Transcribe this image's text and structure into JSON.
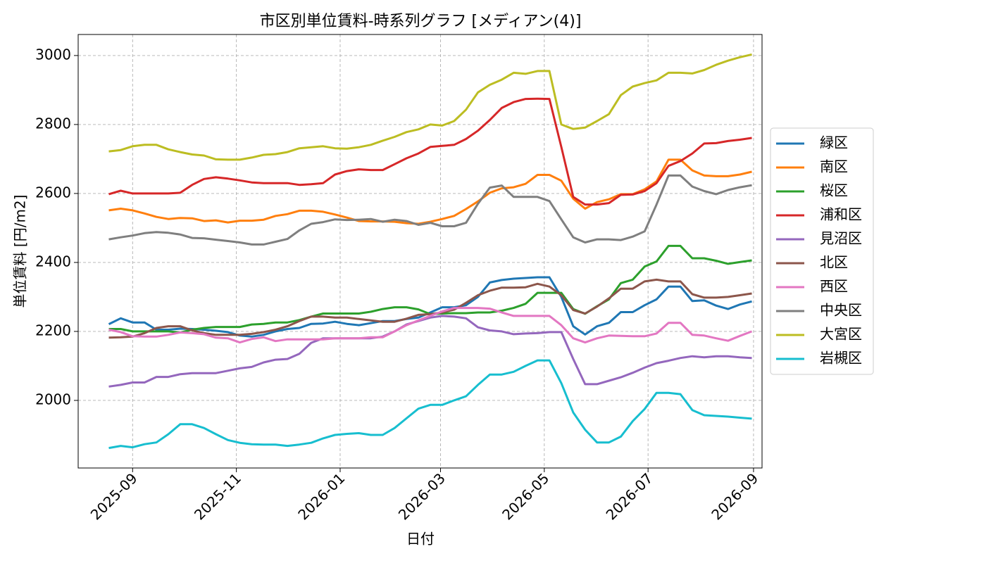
{
  "chart_data": {
    "type": "line",
    "title": "市区別単位賃料-時系列グラフ [メディアン(4)]",
    "x_label": "日付",
    "y_label": "単位賃料 [円/m2]",
    "x": [
      "2025-08-18",
      "2025-08-25",
      "2025-09-01",
      "2025-09-08",
      "2025-09-15",
      "2025-09-22",
      "2025-09-29",
      "2025-10-06",
      "2025-10-13",
      "2025-10-20",
      "2025-10-27",
      "2025-11-03",
      "2025-11-10",
      "2025-11-17",
      "2025-11-24",
      "2025-12-01",
      "2025-12-08",
      "2025-12-15",
      "2025-12-22",
      "2025-12-29",
      "2026-01-05",
      "2026-01-12",
      "2026-01-19",
      "2026-01-26",
      "2026-02-02",
      "2026-02-09",
      "2026-02-16",
      "2026-02-23",
      "2026-03-02",
      "2026-03-09",
      "2026-03-16",
      "2026-03-23",
      "2026-03-30",
      "2026-04-06",
      "2026-04-13",
      "2026-04-20",
      "2026-04-27",
      "2026-05-04",
      "2026-05-11",
      "2026-05-18",
      "2026-05-25",
      "2026-06-01",
      "2026-06-08",
      "2026-06-15",
      "2026-06-22",
      "2026-06-29",
      "2026-07-06",
      "2026-07-13",
      "2026-07-20",
      "2026-07-27",
      "2026-08-03",
      "2026-08-10",
      "2026-08-17",
      "2026-08-24",
      "2026-08-31"
    ],
    "xlim": [
      "2025-07-31",
      "2026-09-06"
    ],
    "xticks": [
      "2025-09",
      "2025-11",
      "2026-01",
      "2026-03",
      "2026-05",
      "2026-07",
      "2026-09"
    ],
    "ylim": [
      1804,
      3061
    ],
    "yticks": [
      2000,
      2200,
      2400,
      2600,
      2800,
      3000
    ],
    "grid": true,
    "legend_position": "right",
    "series": [
      {
        "name": "緑区",
        "color": "#1f77b4",
        "values": [
          2221,
          2238,
          2226,
          2226,
          2205,
          2205,
          2208,
          2207,
          2205,
          2202,
          2198,
          2188,
          2185,
          2190,
          2200,
          2207,
          2210,
          2222,
          2223,
          2228,
          2222,
          2218,
          2224,
          2230,
          2230,
          2236,
          2240,
          2255,
          2270,
          2270,
          2276,
          2300,
          2342,
          2349,
          2353,
          2355,
          2357,
          2357,
          2300,
          2215,
          2191,
          2215,
          2225,
          2256,
          2256,
          2276,
          2293,
          2330,
          2330,
          2288,
          2290,
          2275,
          2265,
          2278,
          2287
        ]
      },
      {
        "name": "南区",
        "color": "#ff7f0e",
        "values": [
          2551,
          2556,
          2551,
          2542,
          2532,
          2526,
          2529,
          2528,
          2520,
          2522,
          2516,
          2521,
          2521,
          2524,
          2535,
          2540,
          2550,
          2550,
          2547,
          2539,
          2530,
          2520,
          2519,
          2519,
          2518,
          2514,
          2512,
          2518,
          2526,
          2535,
          2555,
          2577,
          2602,
          2615,
          2618,
          2628,
          2654,
          2654,
          2637,
          2585,
          2556,
          2575,
          2583,
          2598,
          2598,
          2612,
          2635,
          2698,
          2698,
          2667,
          2652,
          2650,
          2650,
          2655,
          2663
        ]
      },
      {
        "name": "桜区",
        "color": "#2ca02c",
        "values": [
          2207,
          2207,
          2200,
          2200,
          2200,
          2200,
          2197,
          2205,
          2210,
          2213,
          2213,
          2213,
          2220,
          2222,
          2226,
          2226,
          2233,
          2243,
          2252,
          2252,
          2252,
          2252,
          2257,
          2265,
          2270,
          2270,
          2264,
          2250,
          2252,
          2253,
          2253,
          2255,
          2255,
          2260,
          2268,
          2280,
          2312,
          2312,
          2312,
          2265,
          2251,
          2273,
          2293,
          2340,
          2350,
          2388,
          2403,
          2448,
          2448,
          2412,
          2412,
          2405,
          2396,
          2401,
          2406
        ]
      },
      {
        "name": "浦和区",
        "color": "#d62728",
        "values": [
          2598,
          2608,
          2600,
          2600,
          2600,
          2600,
          2602,
          2625,
          2642,
          2647,
          2643,
          2638,
          2632,
          2630,
          2630,
          2630,
          2625,
          2627,
          2630,
          2655,
          2665,
          2670,
          2668,
          2668,
          2685,
          2702,
          2716,
          2735,
          2738,
          2741,
          2758,
          2782,
          2813,
          2848,
          2865,
          2874,
          2875,
          2874,
          2735,
          2590,
          2568,
          2568,
          2572,
          2596,
          2597,
          2607,
          2630,
          2680,
          2694,
          2716,
          2745,
          2746,
          2752,
          2756,
          2761
        ]
      },
      {
        "name": "見沼区",
        "color": "#9467bd",
        "values": [
          2040,
          2045,
          2052,
          2052,
          2068,
          2068,
          2076,
          2079,
          2079,
          2079,
          2086,
          2093,
          2097,
          2110,
          2118,
          2120,
          2135,
          2167,
          2180,
          2180,
          2180,
          2180,
          2180,
          2185,
          2200,
          2220,
          2230,
          2240,
          2245,
          2243,
          2238,
          2212,
          2203,
          2200,
          2192,
          2194,
          2195,
          2198,
          2198,
          2120,
          2047,
          2047,
          2057,
          2067,
          2080,
          2095,
          2108,
          2115,
          2123,
          2128,
          2125,
          2128,
          2128,
          2125,
          2123
        ]
      },
      {
        "name": "北区",
        "color": "#8c564b",
        "values": [
          2182,
          2183,
          2185,
          2195,
          2210,
          2215,
          2215,
          2203,
          2195,
          2190,
          2190,
          2190,
          2193,
          2198,
          2205,
          2215,
          2230,
          2243,
          2243,
          2240,
          2240,
          2236,
          2232,
          2228,
          2228,
          2237,
          2248,
          2250,
          2255,
          2263,
          2283,
          2305,
          2318,
          2327,
          2327,
          2328,
          2338,
          2330,
          2305,
          2262,
          2252,
          2272,
          2296,
          2324,
          2324,
          2345,
          2350,
          2345,
          2345,
          2308,
          2298,
          2298,
          2300,
          2305,
          2310
        ]
      },
      {
        "name": "西区",
        "color": "#e377c2",
        "values": [
          2205,
          2198,
          2186,
          2185,
          2185,
          2190,
          2197,
          2195,
          2192,
          2182,
          2180,
          2168,
          2178,
          2183,
          2172,
          2177,
          2177,
          2177,
          2177,
          2180,
          2180,
          2180,
          2183,
          2183,
          2200,
          2218,
          2232,
          2245,
          2258,
          2268,
          2268,
          2268,
          2266,
          2255,
          2245,
          2245,
          2245,
          2245,
          2218,
          2180,
          2168,
          2180,
          2188,
          2187,
          2186,
          2186,
          2194,
          2225,
          2225,
          2190,
          2188,
          2180,
          2173,
          2187,
          2200
        ]
      },
      {
        "name": "中央区",
        "color": "#7f7f7f",
        "values": [
          2467,
          2473,
          2478,
          2485,
          2488,
          2486,
          2481,
          2471,
          2470,
          2466,
          2462,
          2458,
          2452,
          2452,
          2460,
          2468,
          2493,
          2512,
          2517,
          2525,
          2523,
          2524,
          2526,
          2518,
          2524,
          2520,
          2509,
          2515,
          2505,
          2505,
          2515,
          2570,
          2617,
          2623,
          2590,
          2590,
          2590,
          2578,
          2525,
          2473,
          2458,
          2467,
          2467,
          2465,
          2475,
          2490,
          2568,
          2652,
          2652,
          2620,
          2607,
          2598,
          2610,
          2618,
          2624
        ]
      },
      {
        "name": "大宮区",
        "color": "#bcbd22",
        "values": [
          2722,
          2726,
          2737,
          2741,
          2741,
          2728,
          2720,
          2713,
          2710,
          2699,
          2698,
          2698,
          2704,
          2712,
          2714,
          2720,
          2731,
          2734,
          2737,
          2731,
          2730,
          2734,
          2741,
          2753,
          2764,
          2778,
          2786,
          2800,
          2797,
          2810,
          2843,
          2893,
          2915,
          2930,
          2950,
          2947,
          2955,
          2955,
          2800,
          2787,
          2791,
          2810,
          2830,
          2885,
          2910,
          2920,
          2928,
          2950,
          2950,
          2948,
          2958,
          2973,
          2985,
          2995,
          3003
        ]
      },
      {
        "name": "岩槻区",
        "color": "#17becf",
        "values": [
          1862,
          1868,
          1864,
          1873,
          1878,
          1902,
          1931,
          1931,
          1920,
          1902,
          1885,
          1877,
          1873,
          1872,
          1872,
          1868,
          1872,
          1877,
          1890,
          1900,
          1903,
          1905,
          1900,
          1900,
          1920,
          1948,
          1976,
          1987,
          1987,
          2000,
          2012,
          2045,
          2075,
          2075,
          2083,
          2100,
          2116,
          2116,
          2050,
          1965,
          1915,
          1878,
          1878,
          1895,
          1940,
          1975,
          2022,
          2022,
          2018,
          1972,
          1957,
          1955,
          1953,
          1950,
          1947
        ]
      }
    ]
  }
}
